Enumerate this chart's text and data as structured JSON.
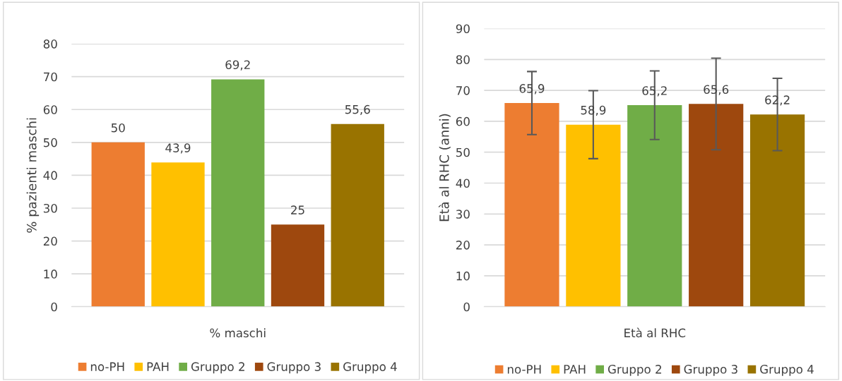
{
  "chart_data": [
    {
      "type": "bar",
      "categories": [
        "% maschi"
      ],
      "ylabel": "% pazienti maschi",
      "ylim": [
        0,
        80
      ],
      "yticks": [
        0,
        10,
        20,
        30,
        40,
        50,
        60,
        70,
        80
      ],
      "grid": "y",
      "legend": "bottom",
      "series": [
        {
          "name": "no-PH",
          "color": "#ed7d31",
          "values": [
            50
          ],
          "value_labels": [
            "50"
          ]
        },
        {
          "name": "PAH",
          "color": "#ffc000",
          "values": [
            43.9
          ],
          "value_labels": [
            "43,9"
          ]
        },
        {
          "name": "Gruppo 2",
          "color": "#70ad47",
          "values": [
            69.2
          ],
          "value_labels": [
            "69,2"
          ]
        },
        {
          "name": "Gruppo 3",
          "color": "#9e480e",
          "values": [
            25
          ],
          "value_labels": [
            "25"
          ]
        },
        {
          "name": "Gruppo 4",
          "color": "#997300",
          "values": [
            55.6
          ],
          "value_labels": [
            "55,6"
          ]
        }
      ]
    },
    {
      "type": "bar",
      "categories": [
        "Età al RHC"
      ],
      "ylabel": "Età al RHC (anni)",
      "ylim": [
        0,
        90
      ],
      "yticks": [
        0,
        10,
        20,
        30,
        40,
        50,
        60,
        70,
        80,
        90
      ],
      "grid": "y",
      "legend": "bottom",
      "series": [
        {
          "name": "no-PH",
          "color": "#ed7d31",
          "values": [
            65.9
          ],
          "errors": [
            10.2
          ],
          "value_labels": [
            "65,9"
          ]
        },
        {
          "name": "PAH",
          "color": "#ffc000",
          "values": [
            58.9
          ],
          "errors": [
            11
          ],
          "value_labels": [
            "58,9"
          ]
        },
        {
          "name": "Gruppo 2",
          "color": "#70ad47",
          "values": [
            65.2
          ],
          "errors": [
            11.1
          ],
          "value_labels": [
            "65,2"
          ]
        },
        {
          "name": "Gruppo 3",
          "color": "#9e480e",
          "values": [
            65.6
          ],
          "errors": [
            14.8
          ],
          "value_labels": [
            "65,6"
          ]
        },
        {
          "name": "Gruppo 4",
          "color": "#997300",
          "values": [
            62.2
          ],
          "errors": [
            11.7
          ],
          "value_labels": [
            "62,2"
          ]
        }
      ]
    }
  ]
}
